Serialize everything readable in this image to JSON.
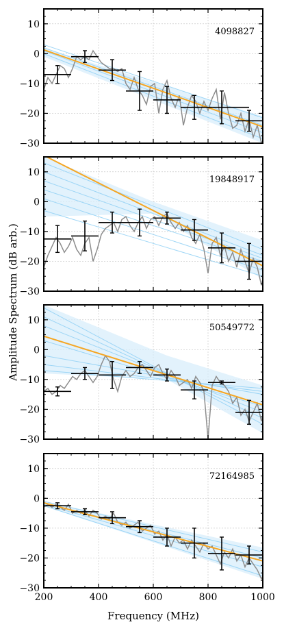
{
  "figure": {
    "ylabel": "Amplitude Spectrum (dB arb.)",
    "xlabel": "Frequency (MHz)"
  },
  "colors": {
    "fit": "#f5a623",
    "band_fill": "#d6ecfb",
    "band_line": "#8fd0f5",
    "data_line": "#8c8c8c",
    "errorbar": "#000000",
    "grid": "#c8c8c8"
  },
  "chart_data": [
    {
      "type": "line",
      "id_label": "4098827",
      "xlim": [
        200,
        1000
      ],
      "ylim": [
        -30,
        15
      ],
      "xticks": [
        200,
        400,
        600,
        800,
        1000
      ],
      "yticks": [
        -30,
        -20,
        -10,
        0,
        10
      ],
      "grid": true,
      "fit_line": {
        "x": [
          200,
          1000
        ],
        "y": [
          1.3,
          -24.5
        ]
      },
      "band": {
        "x": [
          200,
          1000
        ],
        "upper": [
          2.0,
          -21.0
        ],
        "lower": [
          -1.0,
          -30.0
        ]
      },
      "band_lines": [
        {
          "x": [
            200,
            1000
          ],
          "y": [
            3.0,
            -21.5
          ]
        },
        {
          "x": [
            200,
            1000
          ],
          "y": [
            2.0,
            -24.0
          ]
        },
        {
          "x": [
            200,
            1000
          ],
          "y": [
            1.0,
            -26.5
          ]
        },
        {
          "x": [
            200,
            1000
          ],
          "y": [
            0.0,
            -28.5
          ]
        }
      ],
      "errorbars": [
        {
          "x": 250,
          "xerr": 50,
          "y": -7.0,
          "yerr": 3.0
        },
        {
          "x": 350,
          "xerr": 50,
          "y": -1.0,
          "yerr": 2.0
        },
        {
          "x": 450,
          "xerr": 50,
          "y": -5.5,
          "yerr": 3.5
        },
        {
          "x": 550,
          "xerr": 50,
          "y": -12.5,
          "yerr": 6.5
        },
        {
          "x": 650,
          "xerr": 50,
          "y": -15.5,
          "yerr": 4.5
        },
        {
          "x": 750,
          "xerr": 50,
          "y": -18.0,
          "yerr": 4.0
        },
        {
          "x": 850,
          "xerr": 100,
          "y": -18.0,
          "yerr": 5.5
        },
        {
          "x": 950,
          "xerr": 50,
          "y": -22.5,
          "yerr": 3.5
        }
      ],
      "raw_line": {
        "x": [
          200,
          215,
          230,
          245,
          260,
          275,
          290,
          305,
          320,
          335,
          350,
          365,
          380,
          395,
          410,
          425,
          440,
          455,
          470,
          485,
          500,
          515,
          530,
          545,
          560,
          575,
          590,
          605,
          620,
          635,
          650,
          665,
          680,
          695,
          710,
          725,
          740,
          755,
          770,
          785,
          800,
          815,
          830,
          845,
          860,
          875,
          890,
          905,
          920,
          935,
          950,
          965,
          980,
          995,
          1000
        ],
        "y": [
          -12,
          -8,
          -10,
          -7,
          -4,
          -5,
          -8,
          -5,
          -1,
          -2,
          -1,
          -2,
          1,
          -1,
          -3,
          -4,
          -5,
          -5,
          -6,
          -5,
          -10,
          -12,
          -8,
          -12,
          -14,
          -17,
          -11,
          -10,
          -20,
          -12,
          -9,
          -15,
          -18,
          -14,
          -24,
          -18,
          -14,
          -16,
          -20,
          -16,
          -19,
          -15,
          -12,
          -22,
          -13,
          -20,
          -25,
          -24,
          -20,
          -26,
          -22,
          -28,
          -24,
          -30,
          -29
        ]
      }
    },
    {
      "type": "line",
      "id_label": "19848917",
      "xlim": [
        200,
        1000
      ],
      "ylim": [
        -30,
        15
      ],
      "xticks": [
        200,
        400,
        600,
        800,
        1000
      ],
      "yticks": [
        -30,
        -20,
        -10,
        0,
        10
      ],
      "grid": true,
      "fit_line": {
        "x": [
          200,
          1000
        ],
        "y": [
          15.5,
          -21.5
        ]
      },
      "band": {
        "x": [
          200,
          600,
          1000
        ],
        "upper": [
          15.0,
          0.0,
          -13.0
        ],
        "lower": [
          -5.0,
          -4.0,
          -26.0
        ]
      },
      "band_lines": [
        {
          "x": [
            200,
            1000
          ],
          "y": [
            13.0,
            -16.0
          ]
        },
        {
          "x": [
            200,
            1000
          ],
          "y": [
            10.0,
            -18.0
          ]
        },
        {
          "x": [
            200,
            1000
          ],
          "y": [
            7.0,
            -19.0
          ]
        },
        {
          "x": [
            200,
            1000
          ],
          "y": [
            4.0,
            -20.0
          ]
        },
        {
          "x": [
            200,
            1000
          ],
          "y": [
            1.0,
            -23.0
          ]
        },
        {
          "x": [
            200,
            1000
          ],
          "y": [
            -3.0,
            -25.0
          ]
        }
      ],
      "errorbars": [
        {
          "x": 250,
          "xerr": 50,
          "y": -12.5,
          "yerr": 4.5
        },
        {
          "x": 350,
          "xerr": 50,
          "y": -11.5,
          "yerr": 5.0
        },
        {
          "x": 450,
          "xerr": 50,
          "y": -7.0,
          "yerr": 3.5
        },
        {
          "x": 550,
          "xerr": 50,
          "y": -7.0,
          "yerr": 4.5
        },
        {
          "x": 650,
          "xerr": 50,
          "y": -5.5,
          "yerr": 2.0
        },
        {
          "x": 750,
          "xerr": 50,
          "y": -9.5,
          "yerr": 3.5
        },
        {
          "x": 850,
          "xerr": 50,
          "y": -15.5,
          "yerr": 5.0
        },
        {
          "x": 950,
          "xerr": 50,
          "y": -20.0,
          "yerr": 6.0
        }
      ],
      "raw_line": {
        "x": [
          200,
          215,
          230,
          245,
          260,
          275,
          290,
          305,
          320,
          335,
          350,
          365,
          380,
          395,
          410,
          425,
          440,
          455,
          470,
          485,
          500,
          515,
          530,
          545,
          560,
          575,
          590,
          605,
          620,
          635,
          650,
          665,
          680,
          695,
          710,
          725,
          740,
          755,
          770,
          785,
          800,
          815,
          830,
          845,
          860,
          875,
          890,
          905,
          920,
          935,
          950,
          965,
          980,
          995,
          1000
        ],
        "y": [
          -22,
          -18,
          -15,
          -12,
          -14,
          -17,
          -15,
          -12,
          -16,
          -18,
          -14,
          -12,
          -20,
          -16,
          -11,
          -9,
          -8,
          -7,
          -10,
          -6,
          -5,
          -8,
          -10,
          -7,
          -5,
          -9,
          -6,
          -5,
          -8,
          -5,
          -4,
          -7,
          -9,
          -7,
          -10,
          -8,
          -12,
          -14,
          -11,
          -16,
          -24,
          -14,
          -12,
          -18,
          -15,
          -20,
          -17,
          -22,
          -16,
          -20,
          -24,
          -19,
          -22,
          -28,
          -26
        ]
      }
    },
    {
      "type": "line",
      "id_label": "50549772",
      "xlim": [
        200,
        1000
      ],
      "ylim": [
        -30,
        15
      ],
      "xticks": [
        200,
        400,
        600,
        800,
        1000
      ],
      "yticks": [
        -30,
        -20,
        -10,
        0,
        10
      ],
      "grid": true,
      "fit_line": {
        "x": [
          200,
          1000
        ],
        "y": [
          4.5,
          -18.5
        ]
      },
      "band": {
        "x": [
          200,
          650,
          1000
        ],
        "upper": [
          15.0,
          -2.0,
          -12.0
        ],
        "lower": [
          -8.0,
          -10.0,
          -28.0
        ]
      },
      "band_lines": [
        {
          "x": [
            200,
            1000
          ],
          "y": [
            14.0,
            -25.0
          ]
        },
        {
          "x": [
            200,
            1000
          ],
          "y": [
            11.0,
            -23.0
          ]
        },
        {
          "x": [
            200,
            1000
          ],
          "y": [
            8.0,
            -21.0
          ]
        },
        {
          "x": [
            200,
            1000
          ],
          "y": [
            3.0,
            -19.0
          ]
        },
        {
          "x": [
            200,
            1000
          ],
          "y": [
            -2.0,
            -15.0
          ]
        },
        {
          "x": [
            200,
            1000
          ],
          "y": [
            -5.0,
            -14.0
          ]
        },
        {
          "x": [
            200,
            1000
          ],
          "y": [
            -7.0,
            -13.0
          ]
        }
      ],
      "errorbars": [
        {
          "x": 250,
          "xerr": 50,
          "y": -14.0,
          "yerr": 1.5
        },
        {
          "x": 350,
          "xerr": 50,
          "y": -8.0,
          "yerr": 2.0
        },
        {
          "x": 450,
          "xerr": 50,
          "y": -8.5,
          "yerr": 4.5
        },
        {
          "x": 550,
          "xerr": 50,
          "y": -6.0,
          "yerr": 2.0
        },
        {
          "x": 650,
          "xerr": 50,
          "y": -8.5,
          "yerr": 2.0
        },
        {
          "x": 750,
          "xerr": 50,
          "y": -13.5,
          "yerr": 3.0
        },
        {
          "x": 850,
          "xerr": 50,
          "y": -11.0,
          "yerr": 0.5
        },
        {
          "x": 950,
          "xerr": 50,
          "y": -21.0,
          "yerr": 4.0
        }
      ],
      "raw_line": {
        "x": [
          200,
          215,
          230,
          245,
          260,
          275,
          290,
          305,
          320,
          335,
          350,
          365,
          380,
          395,
          410,
          425,
          440,
          455,
          470,
          485,
          500,
          515,
          530,
          545,
          560,
          575,
          590,
          605,
          620,
          635,
          650,
          665,
          680,
          695,
          710,
          725,
          740,
          755,
          770,
          785,
          800,
          815,
          830,
          845,
          860,
          875,
          890,
          905,
          920,
          935,
          950,
          965,
          980,
          995,
          1000
        ],
        "y": [
          -14,
          -13,
          -15,
          -14,
          -12,
          -13,
          -11,
          -9,
          -10,
          -8,
          -7,
          -9,
          -11,
          -9,
          -5,
          -2,
          -4,
          -10,
          -14,
          -9,
          -7,
          -9,
          -8,
          -6,
          -5,
          -7,
          -9,
          -6,
          -5,
          -8,
          -10,
          -7,
          -9,
          -12,
          -11,
          -10,
          -13,
          -9,
          -11,
          -14,
          -30,
          -12,
          -9,
          -11,
          -12,
          -14,
          -18,
          -16,
          -22,
          -20,
          -24,
          -21,
          -18,
          -24,
          -22
        ]
      }
    },
    {
      "type": "line",
      "id_label": "72164985",
      "xlim": [
        200,
        1000
      ],
      "ylim": [
        -30,
        15
      ],
      "xticks": [
        200,
        400,
        600,
        800,
        1000
      ],
      "xticklabels": [
        "200",
        "400",
        "600",
        "800",
        "1000"
      ],
      "yticks": [
        -30,
        -20,
        -10,
        0,
        10
      ],
      "grid": true,
      "fit_line": {
        "x": [
          200,
          1000
        ],
        "y": [
          -1.5,
          -21.0
        ]
      },
      "band": {
        "x": [
          200,
          1000
        ],
        "upper": [
          -1.0,
          -16.5
        ],
        "lower": [
          -2.5,
          -27.0
        ]
      },
      "band_lines": [
        {
          "x": [
            200,
            1000
          ],
          "y": [
            -1.0,
            -18.0
          ]
        },
        {
          "x": [
            200,
            1000
          ],
          "y": [
            -1.5,
            -20.0
          ]
        },
        {
          "x": [
            200,
            1000
          ],
          "y": [
            -2.0,
            -23.0
          ]
        },
        {
          "x": [
            200,
            1000
          ],
          "y": [
            -2.5,
            -26.0
          ]
        }
      ],
      "errorbars": [
        {
          "x": 250,
          "xerr": 50,
          "y": -2.5,
          "yerr": 1.0
        },
        {
          "x": 350,
          "xerr": 50,
          "y": -4.5,
          "yerr": 1.0
        },
        {
          "x": 450,
          "xerr": 50,
          "y": -6.5,
          "yerr": 2.0
        },
        {
          "x": 550,
          "xerr": 50,
          "y": -9.5,
          "yerr": 2.0
        },
        {
          "x": 650,
          "xerr": 50,
          "y": -13.0,
          "yerr": 3.0
        },
        {
          "x": 750,
          "xerr": 50,
          "y": -15.0,
          "yerr": 5.0
        },
        {
          "x": 850,
          "xerr": 50,
          "y": -18.5,
          "yerr": 5.5
        },
        {
          "x": 950,
          "xerr": 50,
          "y": -19.0,
          "yerr": 3.0
        }
      ],
      "raw_line": {
        "x": [
          200,
          215,
          230,
          245,
          260,
          275,
          290,
          305,
          320,
          335,
          350,
          365,
          380,
          395,
          410,
          425,
          440,
          455,
          470,
          485,
          500,
          515,
          530,
          545,
          560,
          575,
          590,
          605,
          620,
          635,
          650,
          665,
          680,
          695,
          710,
          725,
          740,
          755,
          770,
          785,
          800,
          815,
          830,
          845,
          860,
          875,
          890,
          905,
          920,
          935,
          950,
          965,
          980,
          995,
          1000
        ],
        "y": [
          -3,
          -2,
          -3,
          -2,
          -3,
          -4,
          -2,
          -5,
          -4,
          -5,
          -4,
          -6,
          -4,
          -5,
          -7,
          -6,
          -7,
          -5,
          -8,
          -9,
          -8,
          -10,
          -9,
          -8,
          -11,
          -10,
          -9,
          -12,
          -11,
          -14,
          -12,
          -16,
          -13,
          -15,
          -14,
          -17,
          -14,
          -16,
          -18,
          -15,
          -17,
          -16,
          -19,
          -22,
          -18,
          -20,
          -17,
          -21,
          -19,
          -23,
          -20,
          -22,
          -24,
          -27,
          -26
        ]
      }
    }
  ]
}
